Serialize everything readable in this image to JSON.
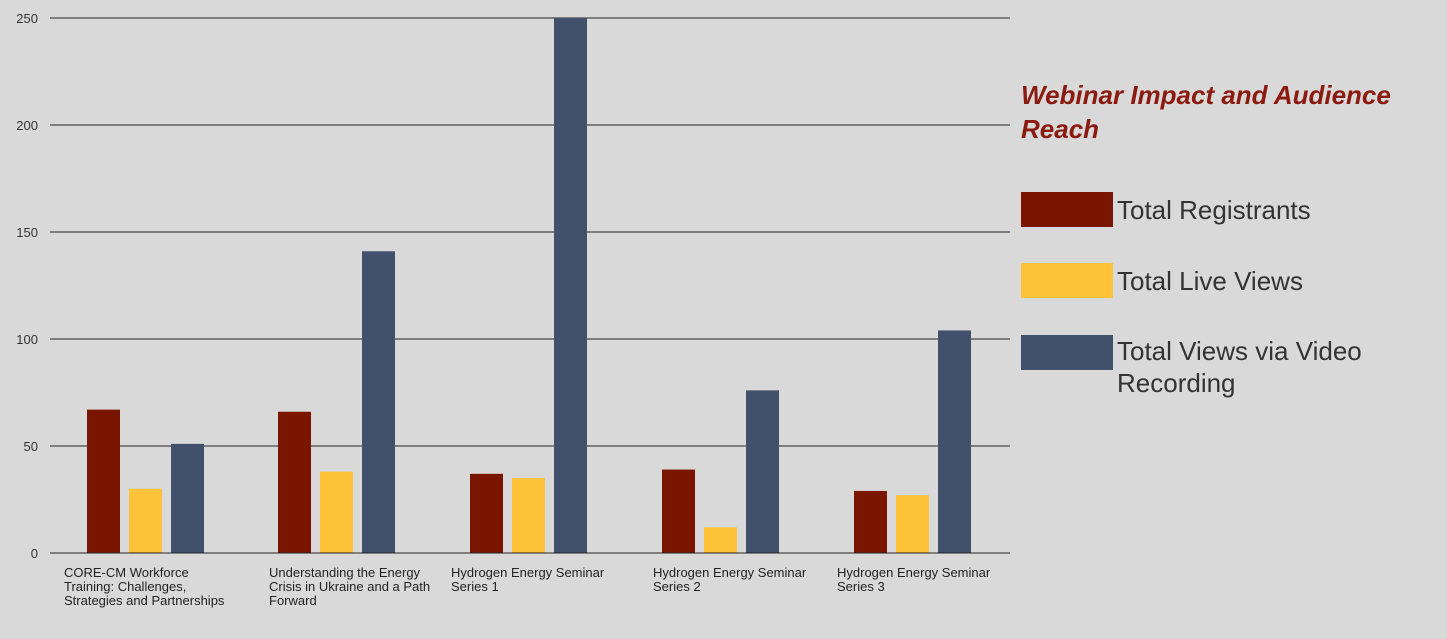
{
  "chart_data": {
    "type": "bar",
    "title": "Webinar Impact and Audience Reach",
    "xlabel": "",
    "ylabel": "",
    "ylim": [
      0,
      250
    ],
    "yticks": [
      "0",
      "50",
      "100",
      "150",
      "200",
      "250"
    ],
    "grid": true,
    "legend_position": "right",
    "categories": [
      "CORE-CM Workforce Training: Challenges, Strategies and Partnerships",
      "Understanding the Energy Crisis in Ukraine and a Path Forward",
      "Hydrogen Energy Seminar Series 1",
      "Hydrogen Energy Seminar Series 2",
      "Hydrogen Energy Seminar Series 3"
    ],
    "series": [
      {
        "name": "Total Registrants",
        "color": "#7a1500",
        "values": [
          67,
          66,
          37,
          39,
          29
        ]
      },
      {
        "name": "Total Live Views",
        "color": "#fec339",
        "values": [
          30,
          38,
          35,
          12,
          27
        ]
      },
      {
        "name": "Total Views via Video Recording",
        "color": "#42516b",
        "values": [
          51,
          141,
          250,
          76,
          104
        ]
      }
    ]
  }
}
